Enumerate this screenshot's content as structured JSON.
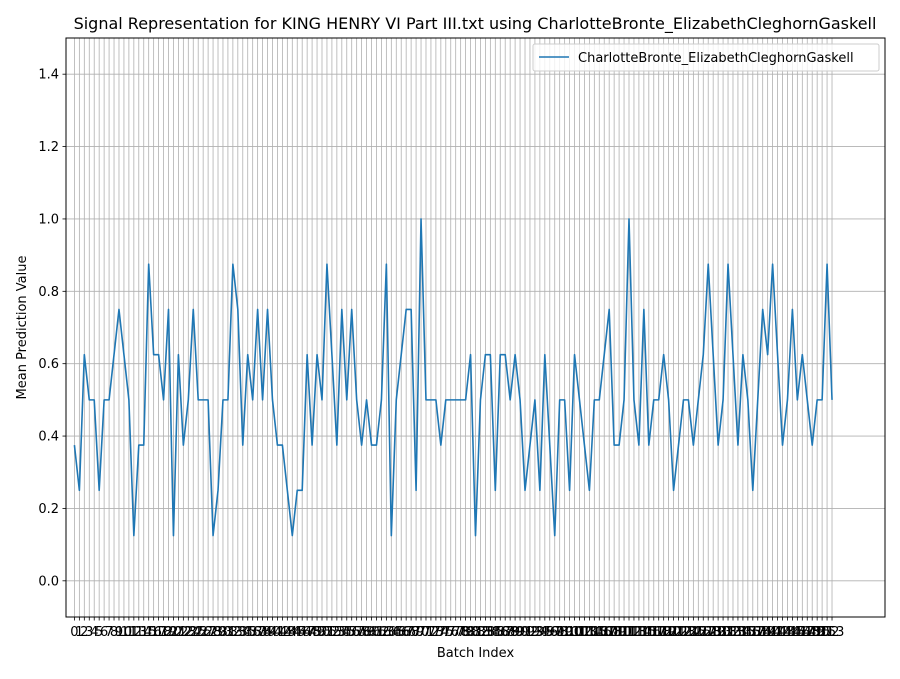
{
  "chart_data": {
    "type": "line",
    "title": "Signal Representation for KING HENRY VI Part III.txt using CharlotteBronte_ElizabethCleghornGaskell",
    "xlabel": "Batch Index",
    "ylabel": "Mean Prediction Value",
    "ylim": [
      -0.1,
      1.5
    ],
    "xlim": [
      -1.7,
      163.7
    ],
    "y_ticks": [
      0.0,
      0.2,
      0.4,
      0.6,
      0.8,
      1.0,
      1.2,
      1.4
    ],
    "x_ticks_count": 154,
    "grid": true,
    "legend_position": "upper-right",
    "series": [
      {
        "name": "CharlotteBronte_ElizabethCleghornGaskell",
        "color": "#1f77b4",
        "values": [
          0.375,
          0.25,
          0.625,
          0.5,
          0.5,
          0.25,
          0.5,
          0.5,
          0.625,
          0.75,
          0.625,
          0.5,
          0.125,
          0.375,
          0.375,
          0.875,
          0.625,
          0.625,
          0.5,
          0.75,
          0.125,
          0.625,
          0.375,
          0.5,
          0.75,
          0.5,
          0.5,
          0.5,
          0.125,
          0.25,
          0.5,
          0.5,
          0.875,
          0.75,
          0.375,
          0.625,
          0.5,
          0.75,
          0.5,
          0.75,
          0.5,
          0.375,
          0.375,
          0.25,
          0.125,
          0.25,
          0.25,
          0.625,
          0.375,
          0.625,
          0.5,
          0.875,
          0.625,
          0.375,
          0.75,
          0.5,
          0.75,
          0.5,
          0.375,
          0.5,
          0.375,
          0.375,
          0.5,
          0.875,
          0.125,
          0.5,
          0.625,
          0.75,
          0.75,
          0.25,
          1.0,
          0.5,
          0.5,
          0.5,
          0.375,
          0.5,
          0.5,
          0.5,
          0.5,
          0.5,
          0.625,
          0.125,
          0.5,
          0.625,
          0.625,
          0.25,
          0.625,
          0.625,
          0.5,
          0.625,
          0.5,
          0.25,
          0.375,
          0.5,
          0.25,
          0.625,
          0.375,
          0.125,
          0.5,
          0.5,
          0.25,
          0.625,
          0.5,
          0.375,
          0.25,
          0.5,
          0.5,
          0.625,
          0.75,
          0.375,
          0.375,
          0.5,
          1.0,
          0.5,
          0.375,
          0.75,
          0.375,
          0.5,
          0.5,
          0.625,
          0.5,
          0.25,
          0.375,
          0.5,
          0.5,
          0.375,
          0.5,
          0.625,
          0.875,
          0.625,
          0.375,
          0.5,
          0.875,
          0.625,
          0.375,
          0.625,
          0.5,
          0.25,
          0.5,
          0.75,
          0.625,
          0.875,
          0.625,
          0.375,
          0.5,
          0.75,
          0.5,
          0.625,
          0.5,
          0.375,
          0.5,
          0.5,
          0.875,
          0.5
        ]
      }
    ]
  }
}
